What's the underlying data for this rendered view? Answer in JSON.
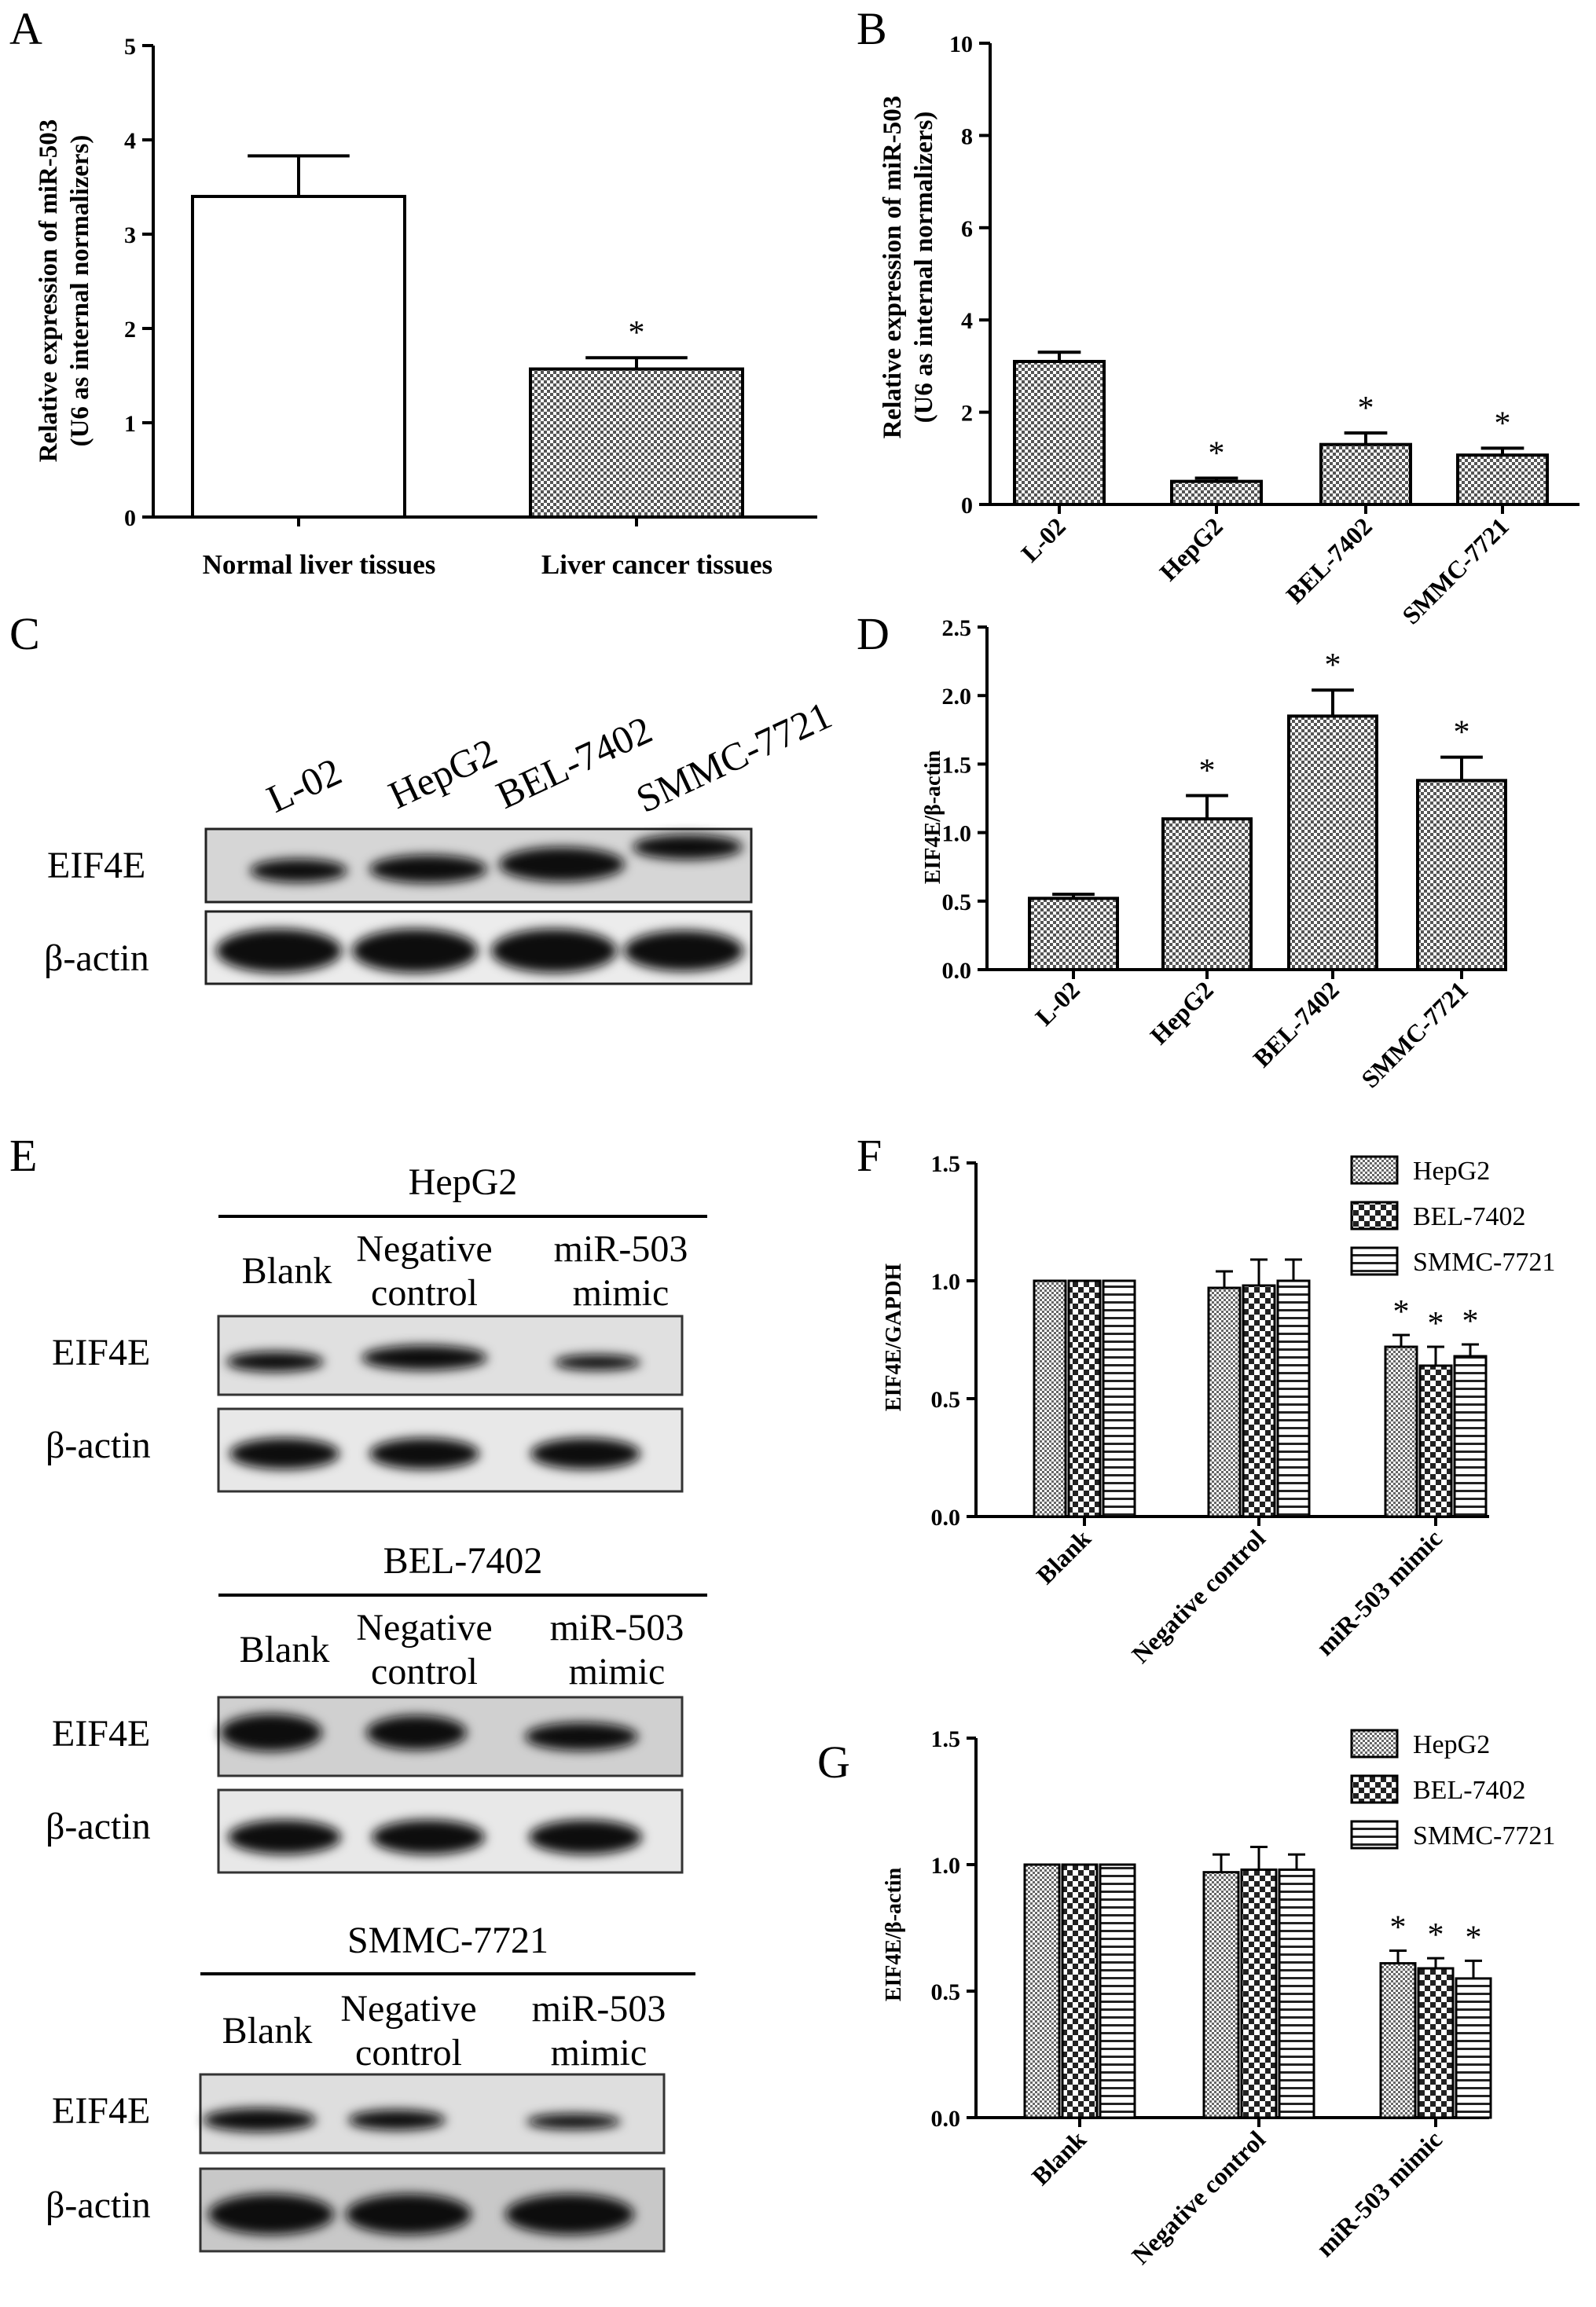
{
  "chart_data": [
    {
      "panel": "A",
      "type": "bar",
      "ylabel_lines": [
        "Relative expression of miR-503",
        "(U6 as internal normalizers)"
      ],
      "ylim": [
        0,
        5
      ],
      "yticks": [
        "0",
        "1",
        "2",
        "3",
        "4",
        "5"
      ],
      "categories": [
        "Normal liver tissues",
        "Liver cancer tissues"
      ],
      "values": [
        3.4,
        1.57
      ],
      "errors": [
        0.43,
        0.12
      ],
      "significance": [
        "",
        "*"
      ],
      "fills": [
        "white",
        "checker"
      ]
    },
    {
      "panel": "B",
      "type": "bar",
      "ylabel_lines": [
        "Relative expression of miR-503",
        "(U6 as internal normalizers)"
      ],
      "ylim": [
        0,
        10
      ],
      "yticks": [
        "0",
        "2",
        "4",
        "6",
        "8",
        "10"
      ],
      "categories": [
        "L-02",
        "HepG2",
        "BEL-7402",
        "SMMC-7721"
      ],
      "values": [
        3.1,
        0.5,
        1.3,
        1.07
      ],
      "errors": [
        0.2,
        0.07,
        0.25,
        0.15
      ],
      "significance": [
        "",
        "*",
        "*",
        "*"
      ]
    },
    {
      "panel": "D",
      "type": "bar",
      "ylabel": "EIF4E/β-actin",
      "ylim": [
        0,
        2.5
      ],
      "yticks": [
        "0.0",
        "0.5",
        "1.0",
        "1.5",
        "2.0",
        "2.5"
      ],
      "categories": [
        "L-02",
        "HepG2",
        "BEL-7402",
        "SMMC-7721"
      ],
      "values": [
        0.52,
        1.1,
        1.85,
        1.38
      ],
      "errors": [
        0.03,
        0.17,
        0.19,
        0.17
      ],
      "significance": [
        "",
        "*",
        "*",
        "*"
      ]
    },
    {
      "panel": "F",
      "type": "bar",
      "ylabel": "EIF4E/GAPDH",
      "ylim": [
        0,
        1.5
      ],
      "yticks": [
        "0.0",
        "0.5",
        "1.0",
        "1.5"
      ],
      "categories": [
        "Blank",
        "Negative control",
        "miR-503 mimic"
      ],
      "series": [
        {
          "name": "HepG2",
          "values": [
            1.0,
            0.97,
            0.72
          ],
          "errors": [
            0,
            0.07,
            0.05
          ]
        },
        {
          "name": "BEL-7402",
          "values": [
            1.0,
            0.98,
            0.64
          ],
          "errors": [
            0,
            0.11,
            0.08
          ]
        },
        {
          "name": "SMMC-7721",
          "values": [
            1.0,
            1.0,
            0.68
          ],
          "errors": [
            0,
            0.09,
            0.05
          ]
        }
      ],
      "significance": [
        [
          "",
          "",
          ""
        ],
        [
          "",
          "",
          ""
        ],
        [
          "*",
          "*",
          "*"
        ]
      ],
      "legend": "top-right"
    },
    {
      "panel": "G",
      "type": "bar",
      "ylabel": "EIF4E/β-actin",
      "ylim": [
        0,
        1.5
      ],
      "yticks": [
        "0.0",
        "0.5",
        "1.0",
        "1.5"
      ],
      "categories": [
        "Blank",
        "Negative control",
        "miR-503 mimic"
      ],
      "series": [
        {
          "name": "HepG2",
          "values": [
            1.0,
            0.97,
            0.61
          ],
          "errors": [
            0,
            0.07,
            0.05
          ]
        },
        {
          "name": "BEL-7402",
          "values": [
            1.0,
            0.98,
            0.59
          ],
          "errors": [
            0,
            0.09,
            0.04
          ]
        },
        {
          "name": "SMMC-7721",
          "values": [
            1.0,
            0.98,
            0.55
          ],
          "errors": [
            0,
            0.06,
            0.07
          ]
        }
      ],
      "significance": [
        [
          "",
          "",
          ""
        ],
        [
          "",
          "",
          ""
        ],
        [
          "*",
          "*",
          "*"
        ]
      ],
      "legend": "top-right"
    }
  ],
  "panels": {
    "A": "A",
    "B": "B",
    "C": "C",
    "D": "D",
    "E": "E",
    "F": "F",
    "G": "G"
  },
  "blot_c": {
    "lanes": [
      "L-02",
      "HepG2",
      "BEL-7402",
      "SMMC-7721"
    ],
    "rows": [
      "EIF4E",
      "β-actin"
    ]
  },
  "blots_e": [
    {
      "title": "HepG2",
      "lanes": [
        [
          "Blank"
        ],
        [
          "Negative",
          "control"
        ],
        [
          "miR-503",
          "mimic"
        ]
      ],
      "rows": [
        "EIF4E",
        "β-actin"
      ]
    },
    {
      "title": "BEL-7402",
      "lanes": [
        [
          "Blank"
        ],
        [
          "Negative",
          "control"
        ],
        [
          "miR-503",
          "mimic"
        ]
      ],
      "rows": [
        "EIF4E",
        "β-actin"
      ]
    },
    {
      "title": "SMMC-7721",
      "lanes": [
        [
          "Blank"
        ],
        [
          "Negative",
          "control"
        ],
        [
          "miR-503",
          "mimic"
        ]
      ],
      "rows": [
        "EIF4E",
        "β-actin"
      ]
    }
  ]
}
